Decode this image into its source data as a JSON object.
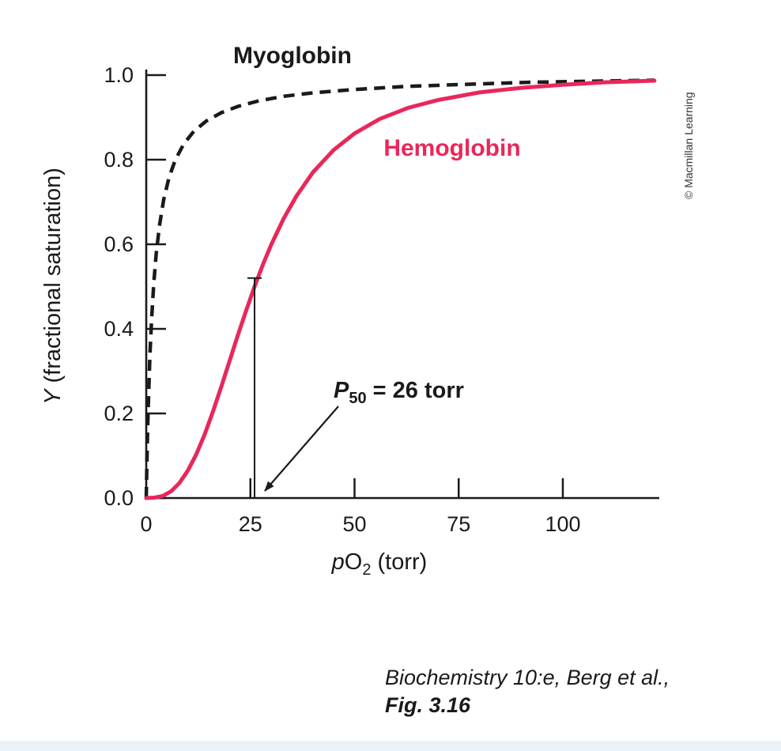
{
  "figure": {
    "caption_line1": "Biochemistry 10:e, Berg et al.,",
    "caption_line2": "Fig. 3.16",
    "credit": "© Macmillan Learning"
  },
  "chart_data": {
    "type": "line",
    "title": "",
    "grid": false,
    "legend_position": "inline-labels",
    "xlabel_parts": {
      "italic": "p",
      "base": "O",
      "sub": "2",
      "rest": " (torr)"
    },
    "ylabel_parts": {
      "italic": "Y",
      "rest": " (fractional saturation)"
    },
    "x_axis": {
      "min": 0,
      "max": 122,
      "tick_values": [
        0,
        25,
        50,
        75,
        100
      ],
      "tick_labels": [
        "0",
        "25",
        "50",
        "75",
        "100"
      ]
    },
    "y_axis": {
      "min": 0,
      "max": 1.0,
      "tick_values": [
        0,
        0.2,
        0.4,
        0.6,
        0.8,
        1.0
      ],
      "tick_labels": [
        "0.0",
        "0.2",
        "0.4",
        "0.6",
        "0.8",
        "1.0"
      ]
    },
    "series": [
      {
        "name": "Myoglobin",
        "color": "#1a1a1a",
        "style": "dashed",
        "x": [
          0,
          0.15,
          0.35,
          0.6,
          0.9,
          1.3,
          1.8,
          2.4,
          3.2,
          4.2,
          5.5,
          7,
          9,
          11.5,
          14.5,
          18,
          22,
          27,
          33,
          40,
          50,
          62,
          76,
          92,
          110,
          122
        ],
        "y": [
          0,
          0.079,
          0.167,
          0.255,
          0.34,
          0.426,
          0.507,
          0.578,
          0.646,
          0.706,
          0.759,
          0.8,
          0.837,
          0.868,
          0.892,
          0.911,
          0.926,
          0.939,
          0.95,
          0.958,
          0.966,
          0.973,
          0.978,
          0.983,
          0.986,
          0.988
        ]
      },
      {
        "name": "Hemoglobin",
        "color": "#e8285a",
        "style": "solid",
        "x": [
          0,
          2,
          4,
          6,
          8,
          10,
          12,
          14,
          16,
          18,
          20,
          22,
          24,
          26,
          28,
          30,
          33,
          36,
          40,
          45,
          50,
          56,
          63,
          70,
          80,
          90,
          100,
          110,
          122
        ],
        "y": [
          0,
          0.001,
          0.005,
          0.016,
          0.036,
          0.065,
          0.103,
          0.15,
          0.204,
          0.263,
          0.324,
          0.385,
          0.444,
          0.5,
          0.552,
          0.599,
          0.661,
          0.713,
          0.77,
          0.823,
          0.862,
          0.896,
          0.923,
          0.941,
          0.959,
          0.97,
          0.977,
          0.983,
          0.987
        ]
      }
    ],
    "p50_annotation": {
      "parts": {
        "italic": "P",
        "sub": "50",
        "rest": " = 26 torr"
      },
      "x": 26,
      "y_top": 0.52
    }
  }
}
